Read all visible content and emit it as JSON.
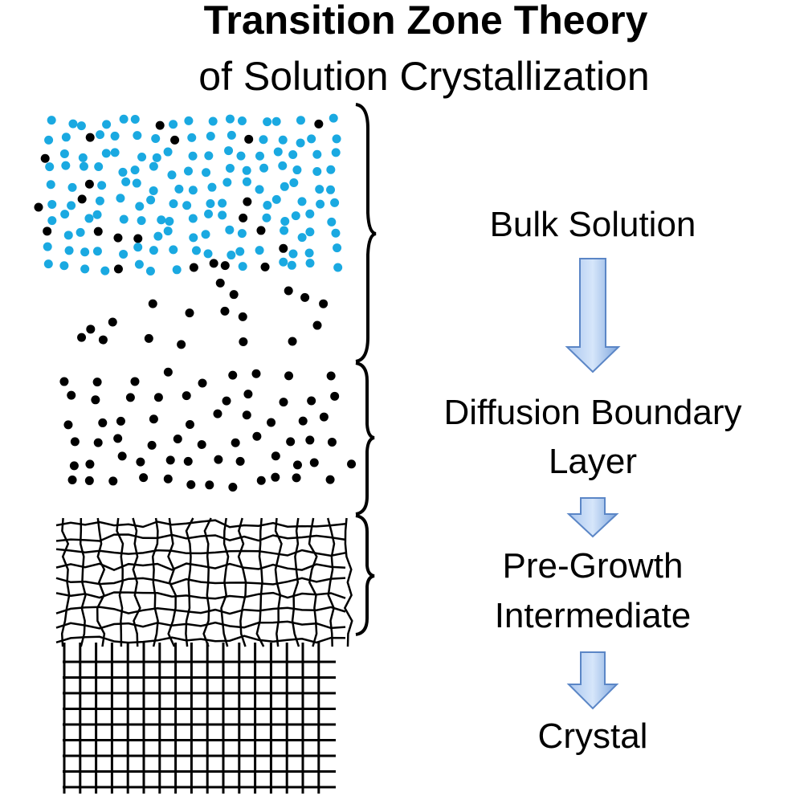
{
  "title": "Transition Zone Theory",
  "subtitle": "of Solution Crystallization",
  "stages": [
    {
      "lines": [
        "Bulk Solution"
      ]
    },
    {
      "lines": [
        "Diffusion Boundary",
        "Layer"
      ]
    },
    {
      "lines": [
        "Pre-Growth",
        "Intermediate"
      ]
    },
    {
      "lines": [
        "Crystal"
      ]
    }
  ]
}
